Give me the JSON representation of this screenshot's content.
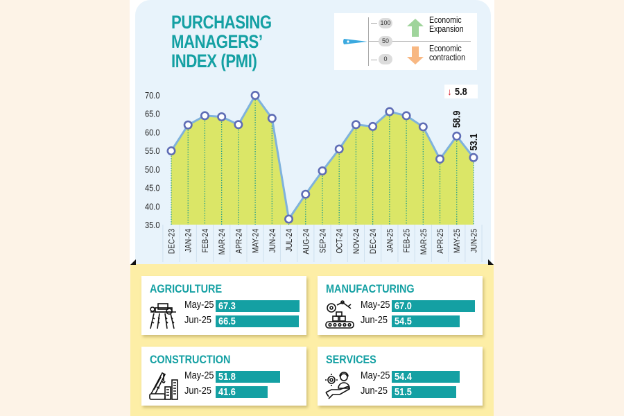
{
  "header": {
    "title_lines": [
      "PURCHASING",
      "MANAGERS’",
      "INDEX (PMI)"
    ]
  },
  "legend": {
    "scale": [
      "100",
      "50",
      "0"
    ],
    "expansion": [
      "Economic",
      "Expansion"
    ],
    "contraction": [
      "Economic",
      "contraction"
    ],
    "colors": {
      "expansion": "#9fd49b",
      "contraction": "#f8b883",
      "pointer": "#3aa9df"
    }
  },
  "change_badge": {
    "direction": "down",
    "value": "5.8",
    "color": "#d51b2a"
  },
  "chart_data": {
    "type": "area",
    "title": "PURCHASING MANAGERS’ INDEX (PMI)",
    "xlabel": "",
    "ylabel": "",
    "categories": [
      "DEC-23",
      "JAN-24",
      "FEB-24",
      "MAR-24",
      "APR-24",
      "MAY-24",
      "JUN-24",
      "JUL-24",
      "AUG-24",
      "SEP-24",
      "OCT-24",
      "NOV-24",
      "DEC-24",
      "JAN-25",
      "FEB-25",
      "MAR-25",
      "APR-25",
      "MAY-25",
      "JUN-25"
    ],
    "series": [
      {
        "name": "PMI",
        "values": [
          54.9,
          61.9,
          64.4,
          64.1,
          62.0,
          69.9,
          63.7,
          36.5,
          43.2,
          49.5,
          55.4,
          62.0,
          61.5,
          65.5,
          64.4,
          61.4,
          52.7,
          58.9,
          53.1
        ]
      }
    ],
    "y_ticks": [
      "70.0",
      "65.0",
      "60.0",
      "55.0",
      "50.0",
      "45.0",
      "40.0",
      "35.0"
    ],
    "ylim": [
      35,
      70
    ],
    "data_labels": [
      {
        "category": "MAY-25",
        "text": "58.9"
      },
      {
        "category": "JUN-25",
        "text": "53.1"
      }
    ],
    "grid": false,
    "colors": {
      "fill": "#dbe667",
      "line": "#7fb2dc",
      "marker": "#5e6cb5",
      "dropline": "#1a9a8c"
    }
  },
  "sectors": [
    {
      "name": "AGRICULTURE",
      "icon": "tractor-field-icon",
      "rows": [
        {
          "label": "May-25",
          "value": "67.3",
          "num": 67.3
        },
        {
          "label": "Jun-25",
          "value": "66.5",
          "num": 66.5
        }
      ]
    },
    {
      "name": "MANUFACTURING",
      "icon": "factory-robot-arm-icon",
      "rows": [
        {
          "label": "May-25",
          "value": "67.0",
          "num": 67.0
        },
        {
          "label": "Jun-25",
          "value": "54.5",
          "num": 54.5
        }
      ]
    },
    {
      "name": "CONSTRUCTION",
      "icon": "crane-building-icon",
      "rows": [
        {
          "label": "May-25",
          "value": "51.8",
          "num": 51.8
        },
        {
          "label": "Jun-25",
          "value": "41.6",
          "num": 41.6
        }
      ]
    },
    {
      "name": "SERVICES",
      "icon": "hand-service-icon",
      "rows": [
        {
          "label": "May-25",
          "value": "54.4",
          "num": 54.4
        },
        {
          "label": "Jun-25",
          "value": "51.5",
          "num": 51.5
        }
      ]
    }
  ],
  "accent": "#14a0a3"
}
